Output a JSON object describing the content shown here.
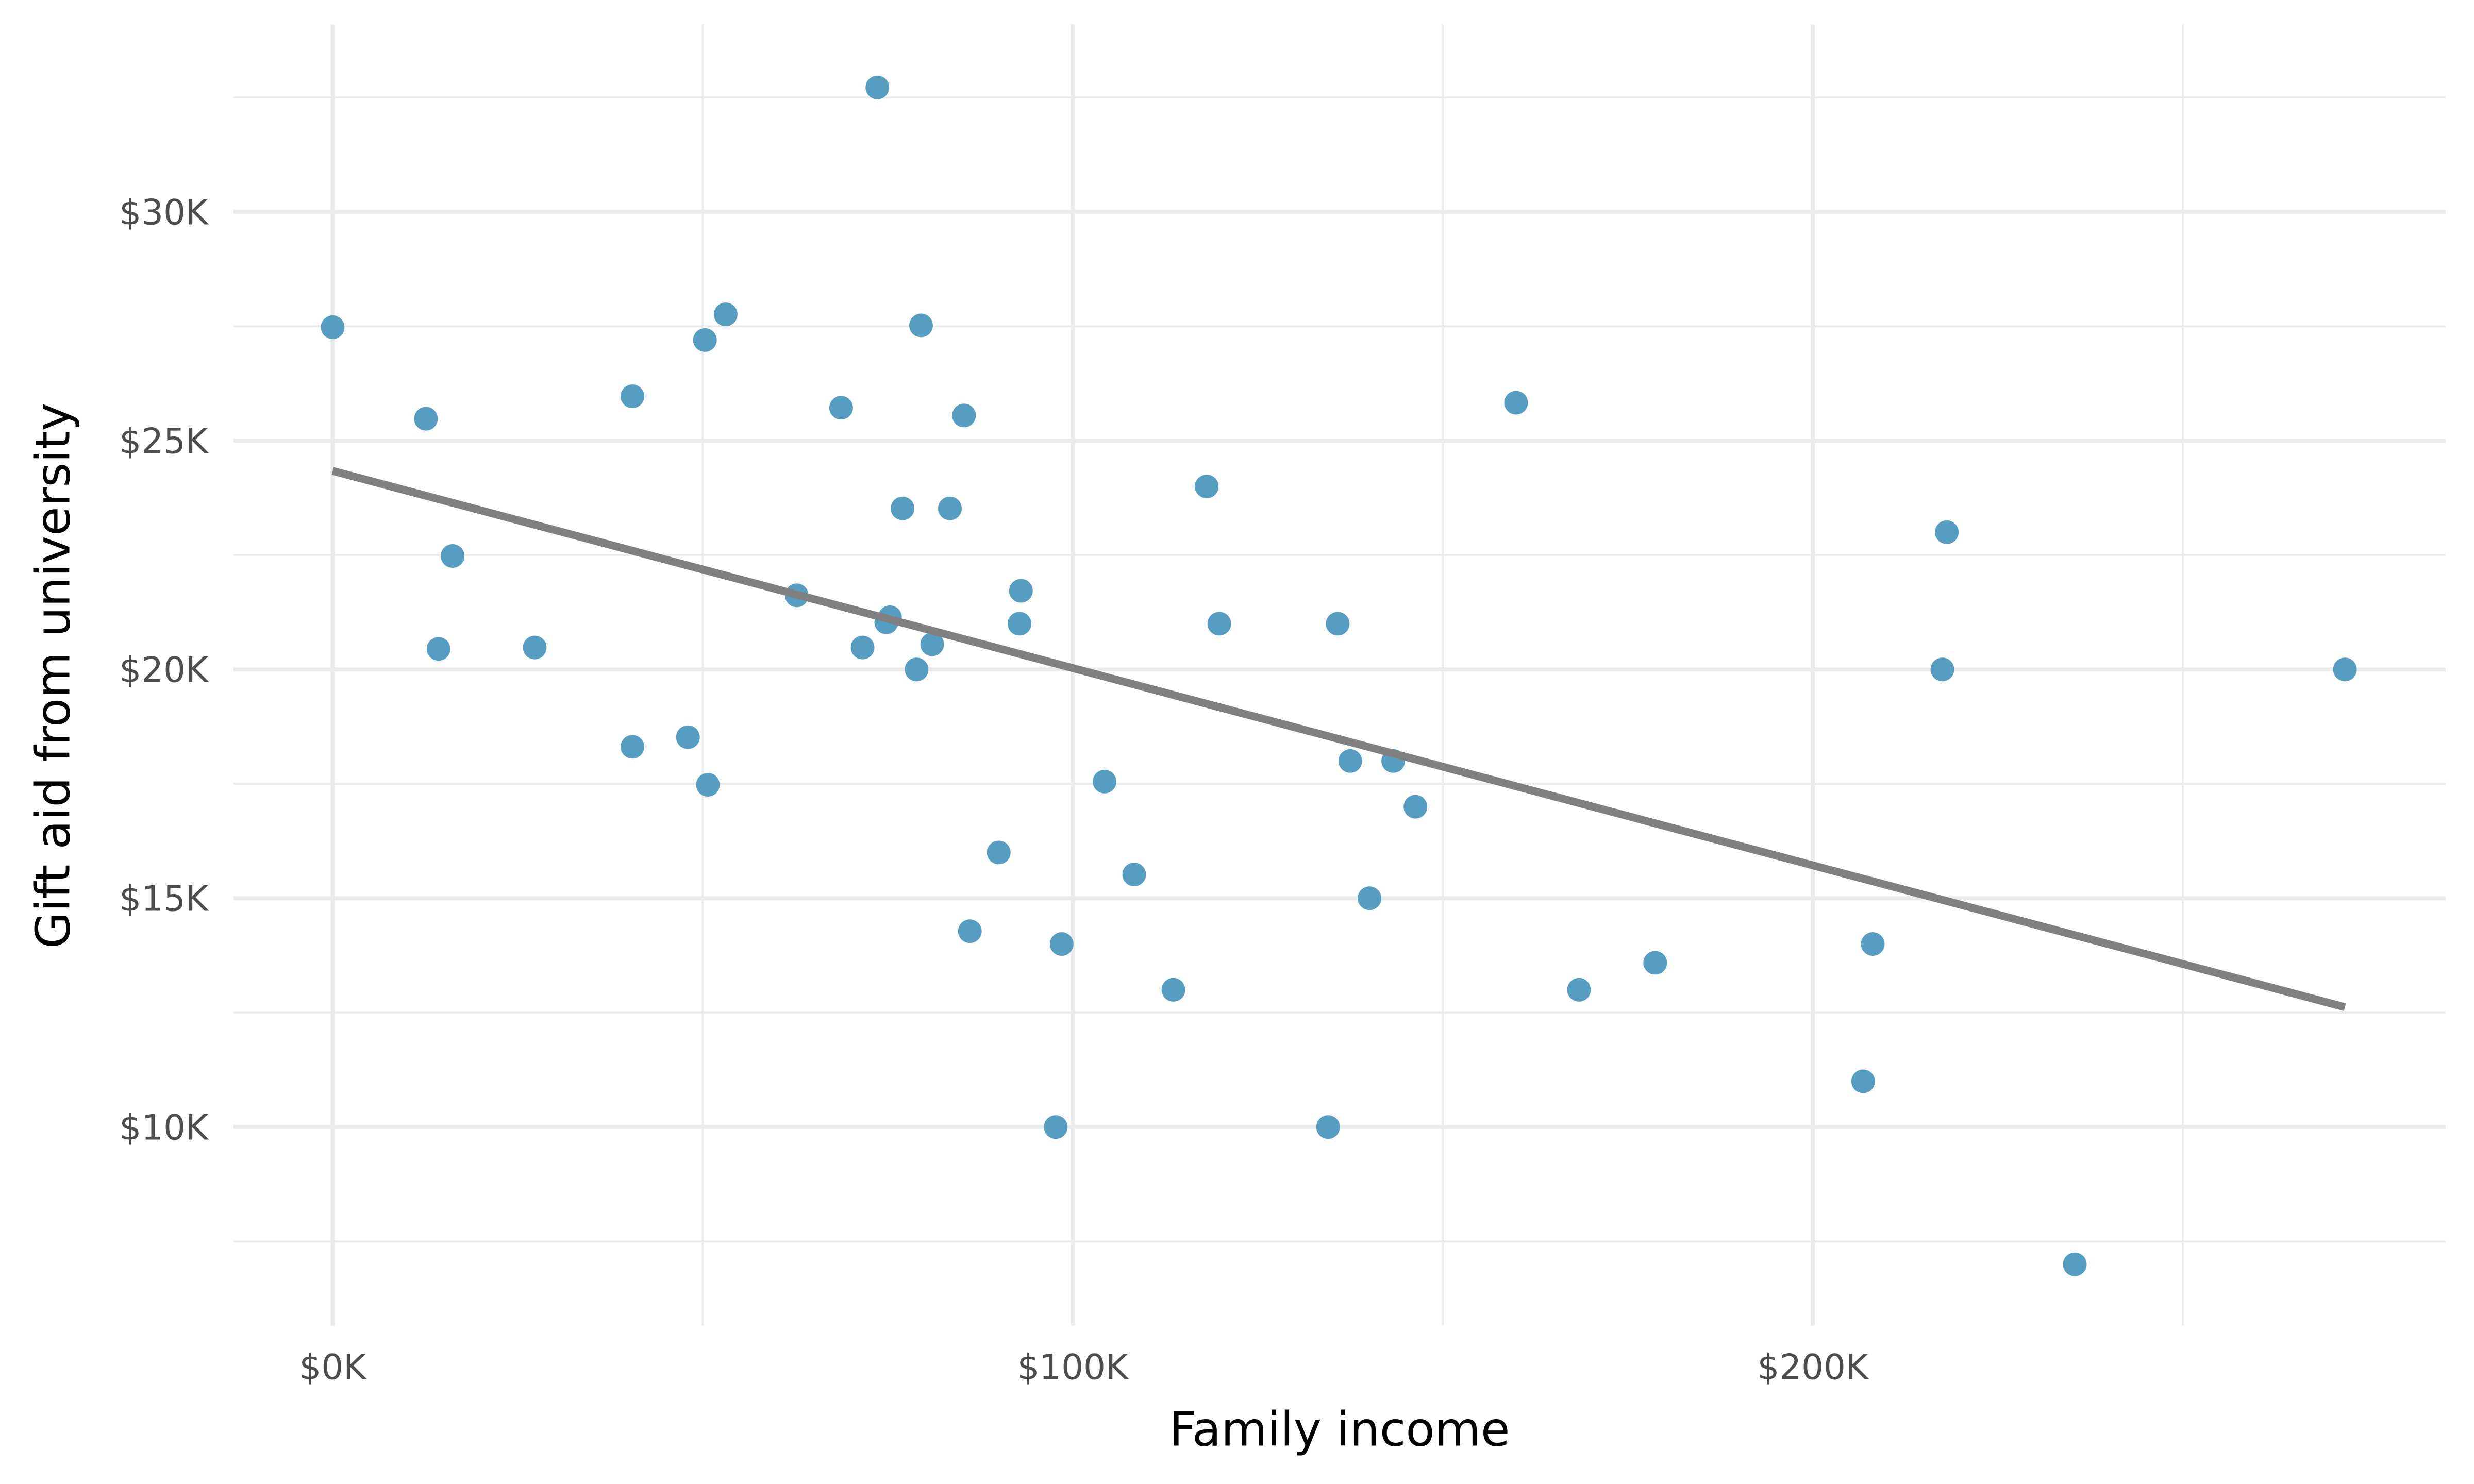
{
  "chart_data": {
    "type": "scatter",
    "xlabel": "Family income",
    "ylabel": "Gift aid from university",
    "x": [
      0,
      12600,
      16200,
      14300,
      27300,
      40500,
      40500,
      48000,
      50300,
      53100,
      50700,
      62700,
      68700,
      71600,
      73600,
      74800,
      75300,
      77000,
      79500,
      78900,
      81000,
      83400,
      85300,
      86100,
      90000,
      93000,
      92800,
      97700,
      98500,
      104300,
      108300,
      113600,
      118100,
      119800,
      134500,
      135800,
      137500,
      140100,
      143300,
      146300,
      159900,
      168400,
      178700,
      206800,
      208100,
      217500,
      218100,
      235400,
      271900
    ],
    "y": [
      27480,
      25480,
      22480,
      20450,
      20480,
      25970,
      18310,
      18520,
      27200,
      27760,
      17480,
      21620,
      25720,
      20480,
      32720,
      21030,
      21140,
      23520,
      27520,
      20000,
      20550,
      23520,
      25550,
      14280,
      16000,
      21720,
      21000,
      10000,
      14000,
      17550,
      15520,
      13000,
      24000,
      21000,
      10000,
      21000,
      18000,
      15000,
      18000,
      17000,
      25830,
      13000,
      13590,
      11000,
      14000,
      20000,
      23000,
      7000,
      20000
    ],
    "color": "#559ec1",
    "trend": {
      "x": [
        0,
        271900
      ],
      "y": [
        24340,
        12620
      ],
      "color": "#808080"
    },
    "xlim": [
      -13400,
      285500
    ],
    "ylim": [
      5660,
      34100
    ],
    "xticks": [
      {
        "value": 0,
        "label": "$0K"
      },
      {
        "value": 100000,
        "label": "$100K"
      },
      {
        "value": 200000,
        "label": "$200K"
      }
    ],
    "yticks": [
      {
        "value": 10000,
        "label": "$10K"
      },
      {
        "value": 15000,
        "label": "$15K"
      },
      {
        "value": 20000,
        "label": "$20K"
      },
      {
        "value": 25000,
        "label": "$25K"
      },
      {
        "value": 30000,
        "label": "$30K"
      }
    ],
    "xticks_minor": [
      50000,
      150000,
      250000
    ],
    "yticks_minor": [
      7500,
      12500,
      17500,
      22500,
      27500,
      32500
    ],
    "grid": true
  }
}
